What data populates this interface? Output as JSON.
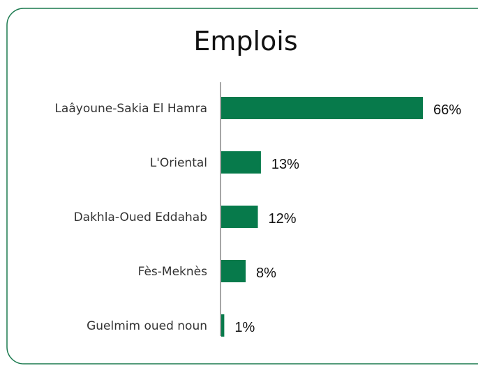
{
  "chart_data": {
    "type": "bar",
    "orientation": "horizontal",
    "title": "Emplois",
    "categories": [
      "Laâyoune-Sakia El Hamra",
      "L'Oriental",
      "Dakhla-Oued Eddahab",
      "Fès-Meknès",
      "Guelmim oued noun"
    ],
    "values": [
      66,
      13,
      12,
      8,
      1
    ],
    "value_labels": [
      "66%",
      "13%",
      "12%",
      "8%",
      "1%"
    ],
    "color": "#077a4b"
  }
}
